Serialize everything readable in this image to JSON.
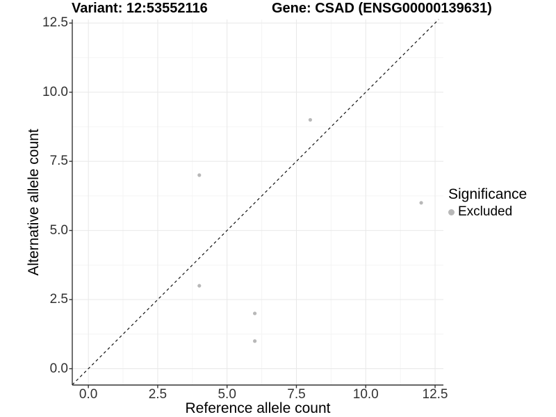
{
  "titles": {
    "left": "Variant: 12:53552116",
    "right": "Gene: CSAD (ENSG00000139631)"
  },
  "axes": {
    "x_label": "Reference allele count",
    "y_label": "Alternative allele count"
  },
  "legend": {
    "title": "Significance",
    "items": [
      {
        "label": "Excluded",
        "color": "#b8b8b8"
      }
    ]
  },
  "colors": {
    "background": "#ffffff",
    "major_grid": "#e8e8e8",
    "minor_grid": "#f4f4f4",
    "axis_line": "#333333",
    "tick_mark": "#333333",
    "tick_text": "#303030",
    "point": "#b8b8b8",
    "identity_line": "#111111"
  },
  "chart_data": {
    "type": "scatter",
    "title": "Variant: 12:53552116    Gene: CSAD (ENSG00000139631)",
    "xlabel": "Reference allele count",
    "ylabel": "Alternative allele count",
    "xlim": [
      -0.58,
      12.8
    ],
    "ylim": [
      -0.59,
      12.63
    ],
    "x_ticks": [
      0.0,
      2.5,
      5.0,
      7.5,
      10.0,
      12.5
    ],
    "y_ticks": [
      0.0,
      2.5,
      5.0,
      7.5,
      10.0,
      12.5
    ],
    "x_tick_labels": [
      "0.0",
      "2.5",
      "5.0",
      "7.5",
      "10.0",
      "12.5"
    ],
    "y_tick_labels": [
      "0.0",
      "2.5",
      "5.0",
      "7.5",
      "10.0",
      "12.5"
    ],
    "grid": "on",
    "legend_position": "right",
    "identity_line": {
      "type": "y=x",
      "style": "dashed",
      "color": "#111111"
    },
    "series": [
      {
        "name": "Excluded",
        "color": "#b8b8b8",
        "points": [
          {
            "x": 8,
            "y": 9
          },
          {
            "x": 4,
            "y": 7
          },
          {
            "x": 12,
            "y": 6
          },
          {
            "x": 4,
            "y": 3
          },
          {
            "x": 6,
            "y": 2
          },
          {
            "x": 6,
            "y": 1
          }
        ]
      }
    ]
  }
}
